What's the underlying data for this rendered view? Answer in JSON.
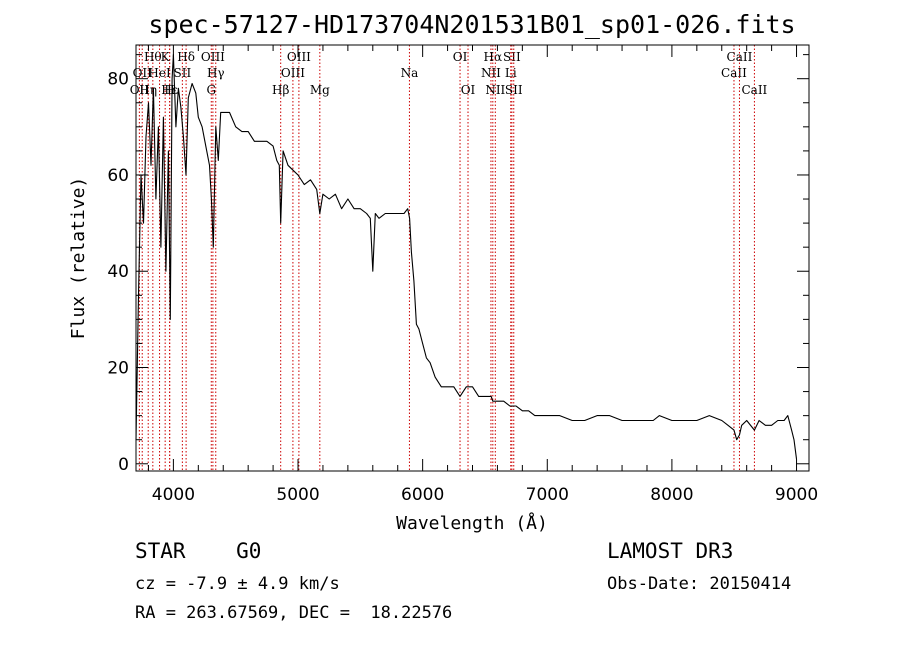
{
  "chart_data": {
    "type": "line",
    "title": "spec-57127-HD173704N201531B01_sp01-026.fits",
    "xlabel": "Wavelength (Å)",
    "ylabel": "Flux (relative)",
    "xlim": [
      3700,
      9100
    ],
    "ylim": [
      -1.5,
      87
    ],
    "xticks": [
      4000,
      5000,
      6000,
      7000,
      8000,
      9000
    ],
    "yticks": [
      0,
      20,
      40,
      60,
      80
    ],
    "grid": false,
    "spectrum": {
      "x": [
        3700,
        3720,
        3740,
        3760,
        3780,
        3800,
        3820,
        3840,
        3860,
        3880,
        3900,
        3920,
        3940,
        3960,
        3975,
        3990,
        4000,
        4020,
        4040,
        4060,
        4080,
        4101,
        4120,
        4150,
        4180,
        4200,
        4230,
        4260,
        4290,
        4305,
        4320,
        4340,
        4360,
        4380,
        4400,
        4450,
        4500,
        4550,
        4600,
        4650,
        4700,
        4750,
        4800,
        4830,
        4850,
        4861,
        4880,
        4920,
        4960,
        5000,
        5050,
        5100,
        5150,
        5175,
        5200,
        5250,
        5300,
        5350,
        5400,
        5450,
        5500,
        5550,
        5580,
        5600,
        5620,
        5650,
        5700,
        5750,
        5800,
        5850,
        5880,
        5895,
        5910,
        5930,
        5950,
        5970,
        6000,
        6030,
        6060,
        6100,
        6150,
        6200,
        6250,
        6300,
        6350,
        6400,
        6450,
        6500,
        6550,
        6563,
        6600,
        6650,
        6700,
        6750,
        6800,
        6850,
        6900,
        7000,
        7100,
        7200,
        7300,
        7400,
        7500,
        7600,
        7700,
        7800,
        7850,
        7900,
        8000,
        8100,
        8200,
        8300,
        8400,
        8450,
        8498,
        8520,
        8542,
        8560,
        8600,
        8662,
        8700,
        8750,
        8800,
        8850,
        8900,
        8930,
        8960,
        8980,
        9000
      ],
      "y": [
        5,
        35,
        60,
        50,
        68,
        75,
        62,
        78,
        55,
        70,
        45,
        72,
        40,
        65,
        30,
        80,
        85,
        70,
        78,
        74,
        68,
        60,
        76,
        79,
        77,
        72,
        70,
        66,
        62,
        55,
        45,
        70,
        63,
        73,
        73,
        73,
        70,
        69,
        69,
        67,
        67,
        67,
        66,
        63,
        62,
        50,
        65,
        62,
        61,
        60,
        58,
        59,
        57,
        52,
        56,
        55,
        56,
        53,
        55,
        53,
        53,
        52,
        51,
        40,
        52,
        51,
        52,
        52,
        52,
        52,
        53,
        51,
        44,
        38,
        29,
        28,
        25,
        22,
        21,
        18,
        16,
        16,
        16,
        14,
        16,
        16,
        14,
        14,
        14,
        13,
        13,
        13,
        12,
        12,
        11,
        11,
        10,
        10,
        10,
        9,
        9,
        10,
        10,
        9,
        9,
        9,
        9,
        10,
        9,
        9,
        9,
        10,
        9,
        8,
        7,
        5,
        6,
        8,
        9,
        7,
        9,
        8,
        8,
        9,
        9,
        10,
        7,
        5,
        1
      ]
    },
    "line_markers": [
      {
        "wavelength": 3727,
        "label": "OII",
        "row": 3
      },
      {
        "wavelength": 3750,
        "label": "OII",
        "row": 2
      },
      {
        "wavelength": 3798,
        "label": "Hη",
        "row": 3
      },
      {
        "wavelength": 3835,
        "label": "Hθ",
        "row": 1
      },
      {
        "wavelength": 3889,
        "label": "HeI",
        "row": 2
      },
      {
        "wavelength": 3934,
        "label": "K",
        "row": 1
      },
      {
        "wavelength": 3970,
        "label": "H",
        "row": 3
      },
      {
        "wavelength": 3970,
        "label": "Hε",
        "row": 3
      },
      {
        "wavelength": 4072,
        "label": "SII",
        "row": 2
      },
      {
        "wavelength": 4102,
        "label": "Hδ",
        "row": 1
      },
      {
        "wavelength": 4304,
        "label": "G",
        "row": 3
      },
      {
        "wavelength": 4317,
        "label": "OIII",
        "row": 1
      },
      {
        "wavelength": 4340,
        "label": "Hγ",
        "row": 2
      },
      {
        "wavelength": 4861,
        "label": "Hβ",
        "row": 3
      },
      {
        "wavelength": 4959,
        "label": "OIII",
        "row": 2
      },
      {
        "wavelength": 5007,
        "label": "OIII",
        "row": 1
      },
      {
        "wavelength": 5175,
        "label": "Mg",
        "row": 3
      },
      {
        "wavelength": 5894,
        "label": "Na",
        "row": 2
      },
      {
        "wavelength": 6300,
        "label": "OI",
        "row": 1
      },
      {
        "wavelength": 6364,
        "label": "OI",
        "row": 3
      },
      {
        "wavelength": 6548,
        "label": "NII",
        "row": 2
      },
      {
        "wavelength": 6563,
        "label": "Hα",
        "row": 1
      },
      {
        "wavelength": 6583,
        "label": "NII",
        "row": 3
      },
      {
        "wavelength": 6707,
        "label": "Li",
        "row": 2
      },
      {
        "wavelength": 6716,
        "label": "SII",
        "row": 1
      },
      {
        "wavelength": 6731,
        "label": "SII",
        "row": 3
      },
      {
        "wavelength": 8498,
        "label": "CaII",
        "row": 2
      },
      {
        "wavelength": 8542,
        "label": "CaII",
        "row": 1
      },
      {
        "wavelength": 8662,
        "label": "CaII",
        "row": 3
      }
    ],
    "marker_color": "#cc0000",
    "line_color": "#000000"
  },
  "info": {
    "class_line": "STAR    G0",
    "cz_line": "cz = -7.9 ± 4.9 km/s",
    "radec_line": "RA = 263.67569, DEC =  18.22576",
    "survey": "LAMOST DR3",
    "obs_date": "Obs-Date: 20150414"
  }
}
